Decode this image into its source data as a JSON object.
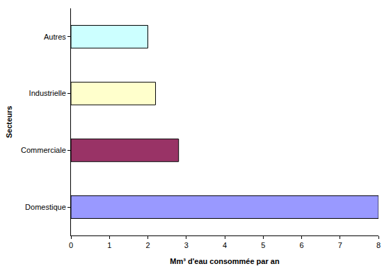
{
  "chart_data": {
    "type": "bar",
    "orientation": "horizontal",
    "xlabel": "Mm³ d'eau consommée par an",
    "ylabel": "Secteurs",
    "categories": [
      "Domestique",
      "Commerciale",
      "Industrielle",
      "Autres"
    ],
    "values": [
      8.0,
      2.8,
      2.2,
      2.0
    ],
    "colors": [
      "#9999ff",
      "#993366",
      "#ffffcc",
      "#ccffff"
    ],
    "xlim": [
      0,
      8
    ],
    "xticks": [
      0,
      1,
      2,
      3,
      4,
      5,
      6,
      7,
      8
    ],
    "grid": false
  }
}
